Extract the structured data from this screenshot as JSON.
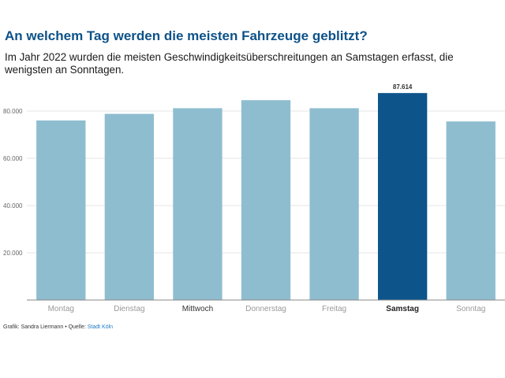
{
  "header": {
    "title": "An welchem Tag werden die meisten Fahrzeuge geblitzt?",
    "subtitle": "Im Jahr 2022 wurden die meisten Geschwindigkeitsüberschreitungen an Samstagen erfasst, die wenigsten an Sonntagen."
  },
  "footer": {
    "credit": "Grafik: Sandra Liermann • Quelle: ",
    "source": "Stadt Köln"
  },
  "colors": {
    "bar": "#8fbdd0",
    "highlight": "#0d548b",
    "grid": "#e6e6e6",
    "axis": "#888888"
  },
  "chart_data": {
    "type": "bar",
    "categories": [
      "Montag",
      "Dienstag",
      "Mittwoch",
      "Donnerstag",
      "Freitag",
      "Samstag",
      "Sonntag"
    ],
    "values": [
      76000,
      78800,
      81200,
      84600,
      81200,
      87614,
      75600
    ],
    "highlight_index": 5,
    "data_labels": [
      "",
      "",
      "",
      "",
      "",
      "87.614",
      ""
    ],
    "ylim": [
      0,
      90000
    ],
    "yticks": [
      20000,
      40000,
      60000,
      80000
    ],
    "ytick_labels": [
      "20.000",
      "40.000",
      "60.000",
      "80.000"
    ],
    "title": "An welchem Tag werden die meisten Fahrzeuge geblitzt?",
    "xlabel": "",
    "ylabel": "",
    "grid": true
  }
}
